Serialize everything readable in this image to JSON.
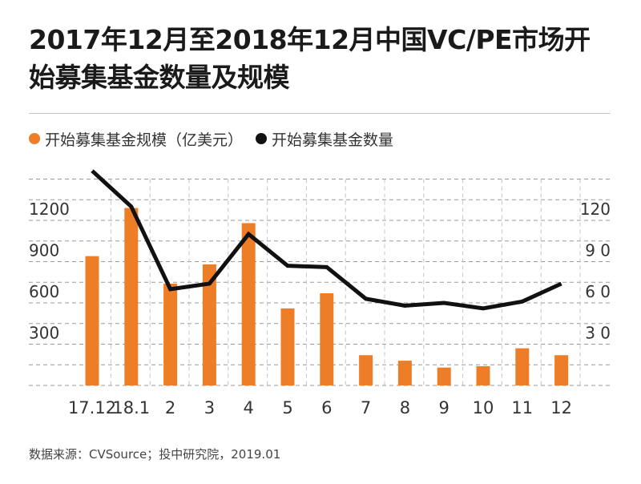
{
  "title": "2017年12月至2018年12月中国VC/PE市场开始募集基金数量及规模",
  "legend": [
    {
      "label": "开始募集基金规模（亿美元）",
      "color": "#ee7d28"
    },
    {
      "label": "开始募集基金数量",
      "color": "#111111"
    }
  ],
  "source": "数据来源：CVSource；投中研究院，2019.01",
  "chart_data": {
    "type": "bar+line",
    "categories": [
      "17.12",
      "18.1",
      "2",
      "3",
      "4",
      "5",
      "6",
      "7",
      "8",
      "9",
      "10",
      "11",
      "12"
    ],
    "series": [
      {
        "name": "开始募集基金规模（亿美元）",
        "type": "bar",
        "axis": "left",
        "values": [
          940,
          1290,
          740,
          880,
          1180,
          560,
          670,
          220,
          180,
          130,
          140,
          270,
          220
        ]
      },
      {
        "name": "开始募集基金数量",
        "type": "line",
        "axis": "right",
        "values": [
          156,
          130,
          70,
          74,
          110,
          87,
          86,
          63,
          58,
          60,
          56,
          61,
          74
        ]
      }
    ],
    "left_axis": {
      "ticks": [
        "300",
        "600",
        "900",
        "1200"
      ],
      "tick_values": [
        300,
        600,
        900,
        1200
      ],
      "range": [
        0,
        1500
      ]
    },
    "right_axis": {
      "ticks": [
        "3 0",
        "6 0",
        "9 0",
        "120"
      ],
      "tick_values": [
        30,
        60,
        90,
        120
      ],
      "range": [
        0,
        150
      ]
    },
    "grid": "dashed horizontal",
    "colors": {
      "bar": "#ee7d28",
      "line": "#111111",
      "grid": "#9a9a9a"
    }
  }
}
